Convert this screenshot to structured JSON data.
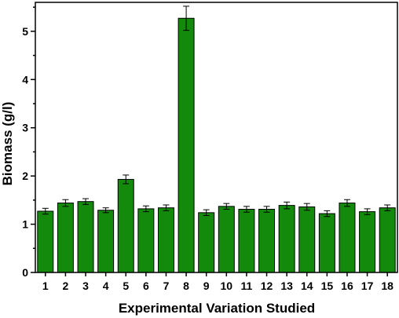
{
  "chart_data": {
    "type": "bar",
    "xlabel": "Experimental Variation Studied",
    "ylabel": "Biomass (g/l)",
    "categories": [
      "1",
      "2",
      "3",
      "4",
      "5",
      "6",
      "7",
      "8",
      "9",
      "10",
      "11",
      "12",
      "13",
      "14",
      "15",
      "16",
      "17",
      "18"
    ],
    "values": [
      1.27,
      1.44,
      1.47,
      1.29,
      1.93,
      1.32,
      1.34,
      5.27,
      1.24,
      1.37,
      1.31,
      1.31,
      1.39,
      1.36,
      1.22,
      1.44,
      1.26,
      1.34
    ],
    "errors": [
      0.06,
      0.07,
      0.06,
      0.05,
      0.09,
      0.06,
      0.06,
      0.25,
      0.06,
      0.06,
      0.06,
      0.06,
      0.07,
      0.07,
      0.06,
      0.07,
      0.06,
      0.06
    ],
    "ylim": [
      0,
      5.6
    ],
    "yticks": [
      0,
      1,
      2,
      3,
      4,
      5
    ],
    "grid": false,
    "bar_color": "#138a0b",
    "bar_edge_color": "#000000"
  }
}
